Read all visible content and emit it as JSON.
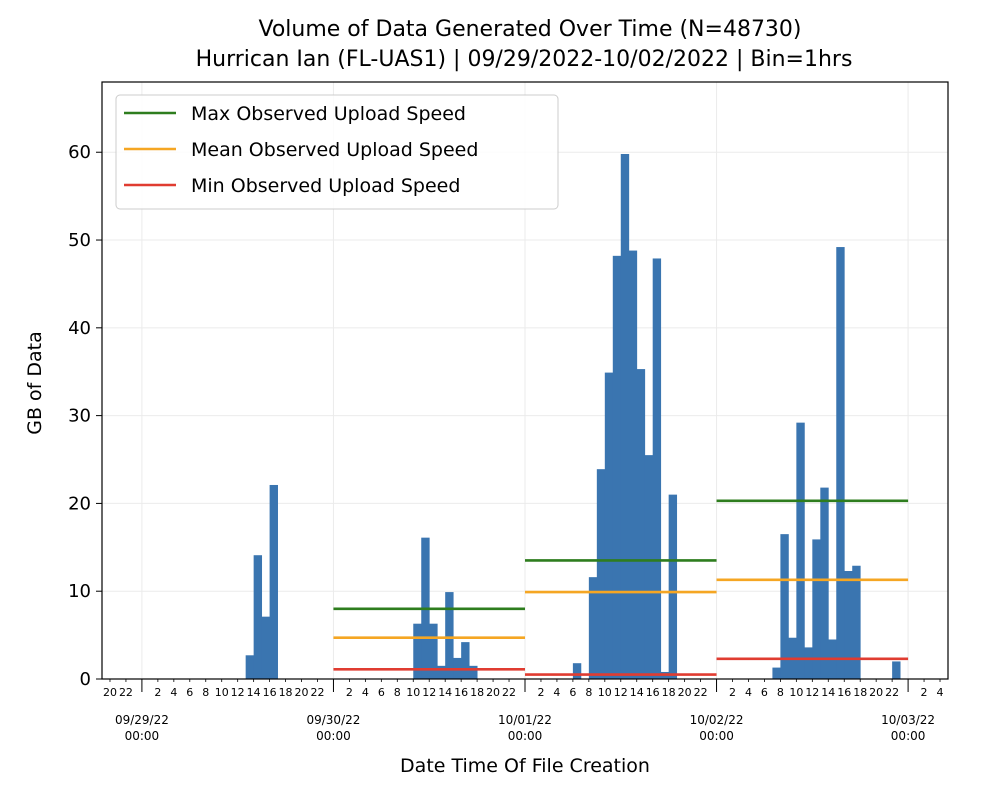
{
  "chart_data": {
    "type": "bar",
    "title": "Volume of Data Generated Over Time (N=48730)",
    "subtitle": "Hurrican Ian (FL-UAS1) | 09/29/2022-10/02/2022 | Bin=1hrs",
    "xlabel": "Date Time Of File Creation",
    "ylabel": "GB of Data",
    "ylim": [
      0,
      68
    ],
    "yticks": [
      0,
      10,
      20,
      30,
      40,
      50,
      60
    ],
    "grid": true,
    "legend_position": "top-left",
    "bar_color": "#3a75b0",
    "hour_tick_labels": [
      "20",
      "22",
      "2",
      "4",
      "6",
      "8",
      "10",
      "12",
      "14",
      "16",
      "18",
      "20",
      "22",
      "2",
      "4",
      "6",
      "8",
      "10",
      "12",
      "14",
      "16",
      "18",
      "20",
      "22",
      "2",
      "4",
      "6",
      "8",
      "10",
      "12",
      "14",
      "16",
      "18",
      "20",
      "22",
      "2",
      "4",
      "6",
      "8",
      "10",
      "12",
      "14",
      "16",
      "18",
      "20",
      "22",
      "2",
      "4"
    ],
    "hour_tick_hours": [
      -4,
      -2,
      2,
      4,
      6,
      8,
      10,
      12,
      14,
      16,
      18,
      20,
      22,
      26,
      28,
      30,
      32,
      34,
      36,
      38,
      40,
      42,
      44,
      46,
      50,
      52,
      54,
      56,
      58,
      60,
      62,
      64,
      66,
      68,
      70,
      74,
      76,
      78,
      80,
      82,
      84,
      86,
      88,
      90,
      92,
      94,
      98,
      100
    ],
    "day_ticks": [
      {
        "date": "09/29/22",
        "time": "00:00",
        "hour": 0
      },
      {
        "date": "09/30/22",
        "time": "00:00",
        "hour": 24
      },
      {
        "date": "10/01/22",
        "time": "00:00",
        "hour": 48
      },
      {
        "date": "10/02/22",
        "time": "00:00",
        "hour": 72
      },
      {
        "date": "10/03/22",
        "time": "00:00",
        "hour": 96
      }
    ],
    "bars": [
      {
        "hour": 13,
        "value": 2.7
      },
      {
        "hour": 14,
        "value": 14.1
      },
      {
        "hour": 15,
        "value": 7.1
      },
      {
        "hour": 16,
        "value": 22.1
      },
      {
        "hour": 34,
        "value": 6.3
      },
      {
        "hour": 35,
        "value": 16.1
      },
      {
        "hour": 36,
        "value": 6.3
      },
      {
        "hour": 37,
        "value": 1.5
      },
      {
        "hour": 38,
        "value": 9.9
      },
      {
        "hour": 39,
        "value": 2.4
      },
      {
        "hour": 40,
        "value": 4.2
      },
      {
        "hour": 41,
        "value": 1.5
      },
      {
        "hour": 54,
        "value": 1.8
      },
      {
        "hour": 56,
        "value": 11.6
      },
      {
        "hour": 57,
        "value": 23.9
      },
      {
        "hour": 58,
        "value": 34.9
      },
      {
        "hour": 59,
        "value": 48.2
      },
      {
        "hour": 60,
        "value": 59.8
      },
      {
        "hour": 61,
        "value": 48.8
      },
      {
        "hour": 62,
        "value": 35.3
      },
      {
        "hour": 63,
        "value": 25.5
      },
      {
        "hour": 64,
        "value": 47.9
      },
      {
        "hour": 65,
        "value": 0.8
      },
      {
        "hour": 66,
        "value": 21.0
      },
      {
        "hour": 79,
        "value": 1.3
      },
      {
        "hour": 80,
        "value": 16.5
      },
      {
        "hour": 81,
        "value": 4.7
      },
      {
        "hour": 82,
        "value": 29.2
      },
      {
        "hour": 83,
        "value": 3.6
      },
      {
        "hour": 84,
        "value": 15.9
      },
      {
        "hour": 85,
        "value": 21.8
      },
      {
        "hour": 86,
        "value": 4.5
      },
      {
        "hour": 87,
        "value": 49.2
      },
      {
        "hour": 88,
        "value": 12.3
      },
      {
        "hour": 89,
        "value": 12.9
      },
      {
        "hour": 94,
        "value": 2.0
      }
    ],
    "series": [
      {
        "name": "Max Observed Upload Speed",
        "color": "#2e7d1e",
        "segments": [
          {
            "x": [
              24,
              48
            ],
            "y": 8.0
          },
          {
            "x": [
              48,
              72
            ],
            "y": 13.5
          },
          {
            "x": [
              72,
              96
            ],
            "y": 20.3
          }
        ]
      },
      {
        "name": "Mean Observed Upload Speed",
        "color": "#f5a623",
        "segments": [
          {
            "x": [
              24,
              48
            ],
            "y": 4.7
          },
          {
            "x": [
              48,
              72
            ],
            "y": 9.9
          },
          {
            "x": [
              72,
              96
            ],
            "y": 11.3
          }
        ]
      },
      {
        "name": "Min Observed Upload Speed",
        "color": "#e03c31",
        "segments": [
          {
            "x": [
              24,
              48
            ],
            "y": 1.1
          },
          {
            "x": [
              48,
              72
            ],
            "y": 0.5
          },
          {
            "x": [
              72,
              96
            ],
            "y": 2.3
          }
        ]
      }
    ]
  }
}
